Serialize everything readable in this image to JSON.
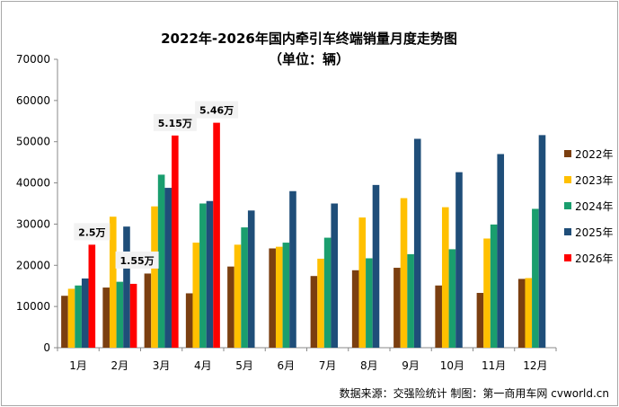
{
  "chart_data": {
    "type": "bar",
    "title": "2022年-2026年国内牵引车终端销量月度走势图",
    "subtitle": "（单位：辆）",
    "xlabel": "",
    "ylabel": "",
    "ylim": [
      0,
      70000
    ],
    "yticks": [
      0,
      10000,
      20000,
      30000,
      40000,
      50000,
      60000,
      70000
    ],
    "grid": false,
    "legend_position": "right",
    "categories": [
      "1月",
      "2月",
      "3月",
      "4月",
      "5月",
      "6月",
      "7月",
      "8月",
      "9月",
      "10月",
      "11月",
      "12月"
    ],
    "series": [
      {
        "name": "2022年",
        "color": "#7b3f10",
        "values": [
          12600,
          14600,
          18000,
          13200,
          19700,
          24100,
          17400,
          18800,
          19400,
          15100,
          13300,
          16700
        ]
      },
      {
        "name": "2023年",
        "color": "#ffc000",
        "values": [
          14300,
          31800,
          34300,
          25500,
          25000,
          24500,
          21600,
          31600,
          36300,
          34100,
          26500,
          16900
        ]
      },
      {
        "name": "2024年",
        "color": "#1a9e6e",
        "values": [
          15100,
          16000,
          42000,
          35000,
          29200,
          25500,
          26700,
          21700,
          22700,
          23900,
          29900,
          33700
        ]
      },
      {
        "name": "2025年",
        "color": "#1f4e79",
        "values": [
          16800,
          29400,
          38800,
          35600,
          33300,
          38000,
          35000,
          39500,
          50700,
          42600,
          47000,
          51600
        ]
      },
      {
        "name": "2026年",
        "color": "#ff0000",
        "values": [
          25000,
          15500,
          51500,
          54600,
          null,
          null,
          null,
          null,
          null,
          null,
          null,
          null
        ]
      }
    ],
    "annotations": [
      {
        "text": "2.5万",
        "category": "1月"
      },
      {
        "text": "1.55万",
        "category": "2月"
      },
      {
        "text": "5.15万",
        "category": "3月"
      },
      {
        "text": "5.46万",
        "category": "4月"
      }
    ]
  },
  "source_text": "数据来源：交强险统计    制图：第一商用车网 cvworld.cn"
}
